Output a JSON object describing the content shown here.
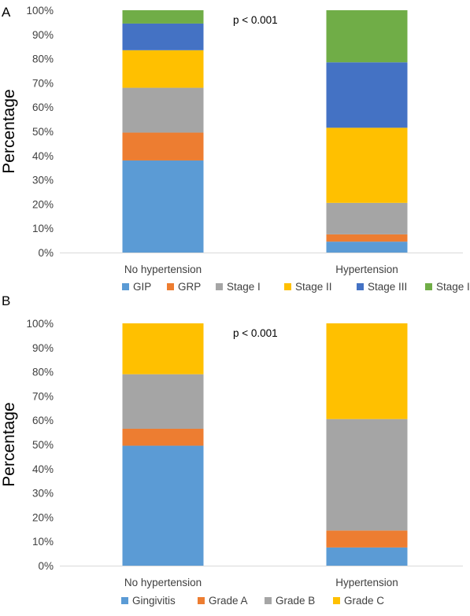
{
  "chart_data": [
    {
      "type": "bar",
      "stacked": true,
      "panel_label": "A",
      "annotation": "p < 0.001",
      "ylabel": "Percentage",
      "xlabel": "",
      "ylim": [
        0,
        100
      ],
      "yticks": [
        "0%",
        "10%",
        "20%",
        "30%",
        "40%",
        "50%",
        "60%",
        "70%",
        "80%",
        "90%",
        "100%"
      ],
      "categories": [
        "No hypertension",
        "Hypertension"
      ],
      "legend_position": "bottom",
      "grid": false,
      "series": [
        {
          "name": "GIP",
          "color": "#5B9BD5",
          "values": [
            38.0,
            4.5
          ]
        },
        {
          "name": "GRP",
          "color": "#ED7D31",
          "values": [
            11.5,
            3.0
          ]
        },
        {
          "name": "Stage I",
          "color": "#A5A5A5",
          "values": [
            18.5,
            13.0
          ]
        },
        {
          "name": "Stage II",
          "color": "#FFC000",
          "values": [
            15.5,
            31.0
          ]
        },
        {
          "name": "Stage III",
          "color": "#4472C4",
          "values": [
            11.0,
            27.0
          ]
        },
        {
          "name": "Stage IV",
          "color": "#70AD47",
          "values": [
            5.5,
            21.5
          ]
        }
      ]
    },
    {
      "type": "bar",
      "stacked": true,
      "panel_label": "B",
      "annotation": "p < 0.001",
      "ylabel": "Percentage",
      "xlabel": "",
      "ylim": [
        0,
        100
      ],
      "yticks": [
        "0%",
        "10%",
        "20%",
        "30%",
        "40%",
        "50%",
        "60%",
        "70%",
        "80%",
        "90%",
        "100%"
      ],
      "categories": [
        "No hypertension",
        "Hypertension"
      ],
      "legend_position": "bottom",
      "grid": false,
      "series": [
        {
          "name": "Gingivitis",
          "color": "#5B9BD5",
          "values": [
            49.5,
            7.5
          ]
        },
        {
          "name": "Grade A",
          "color": "#ED7D31",
          "values": [
            7.0,
            7.0
          ]
        },
        {
          "name": "Grade B",
          "color": "#A5A5A5",
          "values": [
            22.5,
            46.0
          ]
        },
        {
          "name": "Grade C",
          "color": "#FFC000",
          "values": [
            21.0,
            39.5
          ]
        }
      ]
    }
  ]
}
